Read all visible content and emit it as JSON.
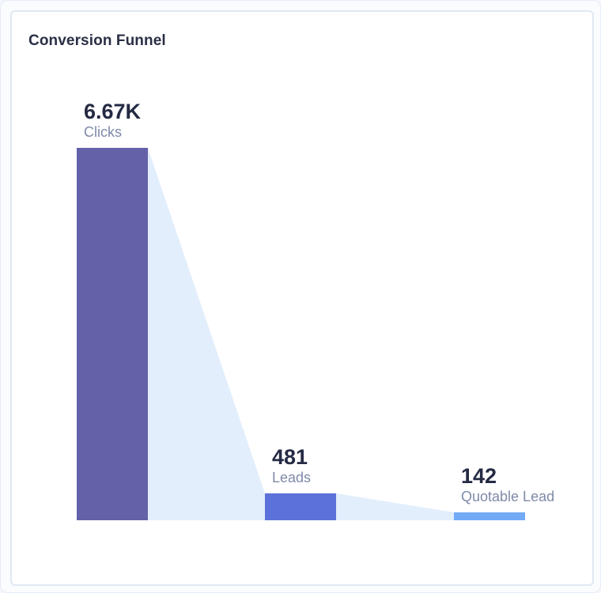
{
  "card": {
    "title": "Conversion Funnel"
  },
  "stages": [
    {
      "value_label": "6.67K",
      "label": "Clicks",
      "color": "#6461a8"
    },
    {
      "value_label": "481",
      "label": "Leads",
      "color": "#5c72da"
    },
    {
      "value_label": "142",
      "label": "Quotable Lead",
      "color": "#72aaf5"
    }
  ],
  "colors": {
    "connector": "#e2eefc",
    "title": "#2b2f45",
    "value": "#252a44",
    "label": "#7f8aaa"
  },
  "chart_data": {
    "type": "bar",
    "subtype": "funnel",
    "title": "Conversion Funnel",
    "categories": [
      "Clicks",
      "Leads",
      "Quotable Lead"
    ],
    "values": [
      6670,
      481,
      142
    ],
    "value_labels": [
      "6.67K",
      "481",
      "142"
    ],
    "xlabel": "",
    "ylabel": "",
    "grid": false,
    "legend": null,
    "ylim": [
      0,
      6670
    ]
  }
}
